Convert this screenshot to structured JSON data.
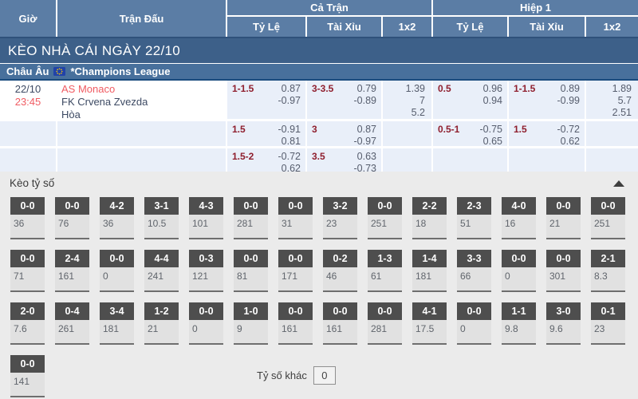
{
  "colors": {
    "header_bg": "#5b7da5",
    "banner_bg": "#3d6089",
    "league_bg": "#48709c",
    "league_border": "#1a4b7e",
    "odds_cell_bg": "#e9eff9",
    "handicap_red": "#8f1f2e",
    "team_red": "#f05b62",
    "dark_text": "#3d4a63",
    "section_bg": "#ebebeb",
    "score_box_bg": "#4e4e4e"
  },
  "table_header": {
    "time": "Giờ",
    "match": "Trận Đấu",
    "full_time": "Cả Trận",
    "first_half": "Hiệp 1",
    "handicap": "Tỷ Lệ",
    "over_under": "Tài Xỉu",
    "one_x_two": "1x2"
  },
  "banner": {
    "title": "KÈO NHÀ CÁI NGÀY 22/10"
  },
  "league_bar": {
    "region": "Châu Âu",
    "flag_icon": "eu-flag-icon",
    "league": "*Champions League"
  },
  "match": {
    "date": "22/10",
    "time": "23:45",
    "home_team": "AS Monaco",
    "away_team": "FK Crvena Zvezda",
    "draw_label": "Hòa",
    "odds_rows": [
      {
        "ft_handicap": {
          "line": "1-1.5",
          "odds": [
            "0.87",
            "-0.97"
          ]
        },
        "ft_over_under": {
          "line": "3-3.5",
          "odds": [
            "0.79",
            "-0.89"
          ]
        },
        "ft_1x2": [
          "1.39",
          "7",
          "5.2"
        ],
        "h1_handicap": {
          "line": "0.5",
          "odds": [
            "0.96",
            "0.94"
          ]
        },
        "h1_over_under": {
          "line": "1-1.5",
          "odds": [
            "0.89",
            "-0.99"
          ]
        },
        "h1_1x2": [
          "1.89",
          "5.7",
          "2.51"
        ]
      },
      {
        "ft_handicap": {
          "line": "1.5",
          "odds": [
            "-0.91",
            "0.81"
          ]
        },
        "ft_over_under": {
          "line": "3",
          "odds": [
            "0.87",
            "-0.97"
          ]
        },
        "ft_1x2": [],
        "h1_handicap": {
          "line": "0.5-1",
          "odds": [
            "-0.75",
            "0.65"
          ]
        },
        "h1_over_under": {
          "line": "1.5",
          "odds": [
            "-0.72",
            "0.62"
          ]
        },
        "h1_1x2": []
      },
      {
        "ft_handicap": {
          "line": "1.5-2",
          "odds": [
            "-0.72",
            "0.62"
          ]
        },
        "ft_over_under": {
          "line": "3.5",
          "odds": [
            "0.63",
            "-0.73"
          ]
        },
        "ft_1x2": [],
        "h1_handicap": null,
        "h1_over_under": null,
        "h1_1x2": []
      }
    ]
  },
  "score_section": {
    "title": "Kèo tỷ số",
    "collapse_icon": "chevron-up-icon",
    "rows": [
      [
        {
          "score": "0-0",
          "odds": "36"
        },
        {
          "score": "0-0",
          "odds": "76"
        },
        {
          "score": "4-2",
          "odds": "36"
        },
        {
          "score": "3-1",
          "odds": "10.5"
        },
        {
          "score": "4-3",
          "odds": "101"
        },
        {
          "score": "0-0",
          "odds": "281"
        },
        {
          "score": "0-0",
          "odds": "31"
        },
        {
          "score": "3-2",
          "odds": "23"
        },
        {
          "score": "0-0",
          "odds": "251"
        },
        {
          "score": "2-2",
          "odds": "18"
        },
        {
          "score": "2-3",
          "odds": "51"
        },
        {
          "score": "4-0",
          "odds": "16"
        },
        {
          "score": "0-0",
          "odds": "21"
        },
        {
          "score": "0-0",
          "odds": "251"
        }
      ],
      [
        {
          "score": "0-0",
          "odds": "71"
        },
        {
          "score": "2-4",
          "odds": "161"
        },
        {
          "score": "0-0",
          "odds": "0"
        },
        {
          "score": "4-4",
          "odds": "241"
        },
        {
          "score": "0-3",
          "odds": "121"
        },
        {
          "score": "0-0",
          "odds": "81"
        },
        {
          "score": "0-0",
          "odds": "171"
        },
        {
          "score": "0-2",
          "odds": "46"
        },
        {
          "score": "1-3",
          "odds": "61"
        },
        {
          "score": "1-4",
          "odds": "181"
        },
        {
          "score": "3-3",
          "odds": "66"
        },
        {
          "score": "0-0",
          "odds": "0"
        },
        {
          "score": "0-0",
          "odds": "301"
        },
        {
          "score": "2-1",
          "odds": "8.3"
        }
      ],
      [
        {
          "score": "2-0",
          "odds": "7.6"
        },
        {
          "score": "0-4",
          "odds": "261"
        },
        {
          "score": "3-4",
          "odds": "181"
        },
        {
          "score": "1-2",
          "odds": "21"
        },
        {
          "score": "0-0",
          "odds": "0"
        },
        {
          "score": "1-0",
          "odds": "9"
        },
        {
          "score": "0-0",
          "odds": "161"
        },
        {
          "score": "0-0",
          "odds": "161"
        },
        {
          "score": "0-0",
          "odds": "281"
        },
        {
          "score": "4-1",
          "odds": "17.5"
        },
        {
          "score": "0-0",
          "odds": "0"
        },
        {
          "score": "1-1",
          "odds": "9.8"
        },
        {
          "score": "3-0",
          "odds": "9.6"
        },
        {
          "score": "0-1",
          "odds": "23"
        }
      ],
      [
        {
          "score": "0-0",
          "odds": "141"
        }
      ]
    ],
    "other_score_label": "Tỷ số khác",
    "other_score_value": "0"
  }
}
